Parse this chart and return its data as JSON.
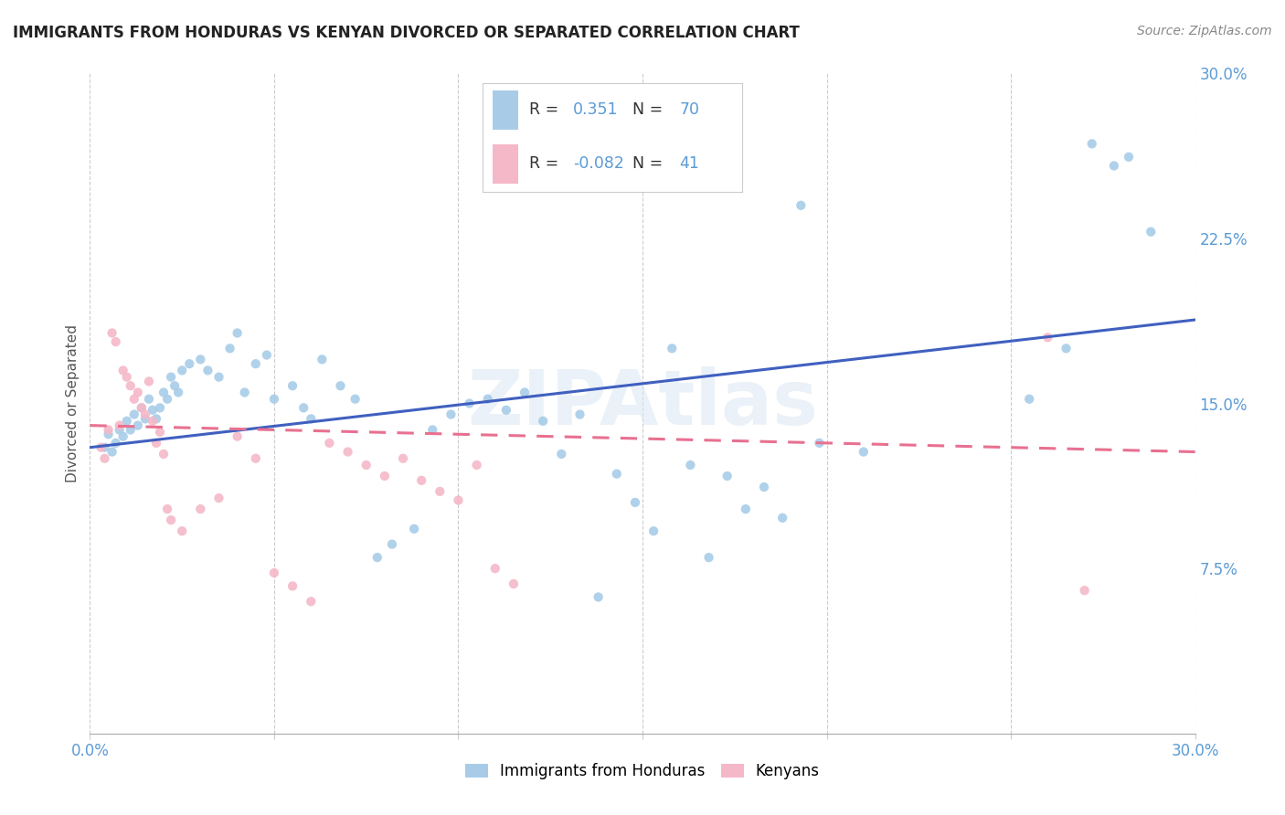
{
  "title": "IMMIGRANTS FROM HONDURAS VS KENYAN DIVORCED OR SEPARATED CORRELATION CHART",
  "source": "Source: ZipAtlas.com",
  "ylabel": "Divorced or Separated",
  "xlim": [
    0.0,
    0.3
  ],
  "ylim": [
    0.0,
    0.3
  ],
  "watermark": "ZIPAtlas",
  "blue_color": "#A8CCE8",
  "pink_color": "#F4B8C8",
  "trendline_blue": "#4060C0",
  "trendline_pink": "#E87090",
  "blue_scatter": [
    [
      0.004,
      0.13
    ],
    [
      0.005,
      0.136
    ],
    [
      0.006,
      0.128
    ],
    [
      0.007,
      0.132
    ],
    [
      0.008,
      0.138
    ],
    [
      0.009,
      0.135
    ],
    [
      0.01,
      0.142
    ],
    [
      0.011,
      0.138
    ],
    [
      0.012,
      0.145
    ],
    [
      0.013,
      0.14
    ],
    [
      0.014,
      0.148
    ],
    [
      0.015,
      0.143
    ],
    [
      0.016,
      0.152
    ],
    [
      0.017,
      0.147
    ],
    [
      0.018,
      0.143
    ],
    [
      0.019,
      0.148
    ],
    [
      0.02,
      0.155
    ],
    [
      0.021,
      0.152
    ],
    [
      0.022,
      0.162
    ],
    [
      0.023,
      0.158
    ],
    [
      0.024,
      0.155
    ],
    [
      0.025,
      0.165
    ],
    [
      0.027,
      0.168
    ],
    [
      0.03,
      0.17
    ],
    [
      0.032,
      0.165
    ],
    [
      0.035,
      0.162
    ],
    [
      0.038,
      0.175
    ],
    [
      0.04,
      0.182
    ],
    [
      0.042,
      0.155
    ],
    [
      0.045,
      0.168
    ],
    [
      0.048,
      0.172
    ],
    [
      0.05,
      0.152
    ],
    [
      0.055,
      0.158
    ],
    [
      0.058,
      0.148
    ],
    [
      0.06,
      0.143
    ],
    [
      0.063,
      0.17
    ],
    [
      0.068,
      0.158
    ],
    [
      0.072,
      0.152
    ],
    [
      0.078,
      0.08
    ],
    [
      0.082,
      0.086
    ],
    [
      0.088,
      0.093
    ],
    [
      0.093,
      0.138
    ],
    [
      0.098,
      0.145
    ],
    [
      0.103,
      0.15
    ],
    [
      0.108,
      0.152
    ],
    [
      0.113,
      0.147
    ],
    [
      0.118,
      0.155
    ],
    [
      0.123,
      0.142
    ],
    [
      0.128,
      0.127
    ],
    [
      0.133,
      0.145
    ],
    [
      0.138,
      0.062
    ],
    [
      0.143,
      0.118
    ],
    [
      0.148,
      0.105
    ],
    [
      0.153,
      0.092
    ],
    [
      0.158,
      0.175
    ],
    [
      0.163,
      0.122
    ],
    [
      0.168,
      0.08
    ],
    [
      0.173,
      0.117
    ],
    [
      0.178,
      0.102
    ],
    [
      0.183,
      0.112
    ],
    [
      0.188,
      0.098
    ],
    [
      0.193,
      0.24
    ],
    [
      0.198,
      0.132
    ],
    [
      0.21,
      0.128
    ],
    [
      0.255,
      0.152
    ],
    [
      0.265,
      0.175
    ],
    [
      0.272,
      0.268
    ],
    [
      0.278,
      0.258
    ],
    [
      0.282,
      0.262
    ],
    [
      0.288,
      0.228
    ]
  ],
  "pink_scatter": [
    [
      0.003,
      0.13
    ],
    [
      0.004,
      0.125
    ],
    [
      0.005,
      0.138
    ],
    [
      0.006,
      0.182
    ],
    [
      0.007,
      0.178
    ],
    [
      0.008,
      0.14
    ],
    [
      0.009,
      0.165
    ],
    [
      0.01,
      0.162
    ],
    [
      0.011,
      0.158
    ],
    [
      0.012,
      0.152
    ],
    [
      0.013,
      0.155
    ],
    [
      0.014,
      0.148
    ],
    [
      0.015,
      0.145
    ],
    [
      0.016,
      0.16
    ],
    [
      0.017,
      0.142
    ],
    [
      0.018,
      0.132
    ],
    [
      0.019,
      0.137
    ],
    [
      0.02,
      0.127
    ],
    [
      0.021,
      0.102
    ],
    [
      0.022,
      0.097
    ],
    [
      0.025,
      0.092
    ],
    [
      0.03,
      0.102
    ],
    [
      0.035,
      0.107
    ],
    [
      0.04,
      0.135
    ],
    [
      0.045,
      0.125
    ],
    [
      0.05,
      0.073
    ],
    [
      0.055,
      0.067
    ],
    [
      0.06,
      0.06
    ],
    [
      0.065,
      0.132
    ],
    [
      0.07,
      0.128
    ],
    [
      0.075,
      0.122
    ],
    [
      0.08,
      0.117
    ],
    [
      0.085,
      0.125
    ],
    [
      0.09,
      0.115
    ],
    [
      0.095,
      0.11
    ],
    [
      0.1,
      0.106
    ],
    [
      0.105,
      0.122
    ],
    [
      0.11,
      0.075
    ],
    [
      0.115,
      0.068
    ],
    [
      0.26,
      0.18
    ],
    [
      0.27,
      0.065
    ]
  ],
  "blue_trend_x": [
    0.0,
    0.3
  ],
  "blue_trend_y": [
    0.13,
    0.188
  ],
  "pink_trend_x": [
    0.0,
    0.3
  ],
  "pink_trend_y": [
    0.14,
    0.128
  ]
}
